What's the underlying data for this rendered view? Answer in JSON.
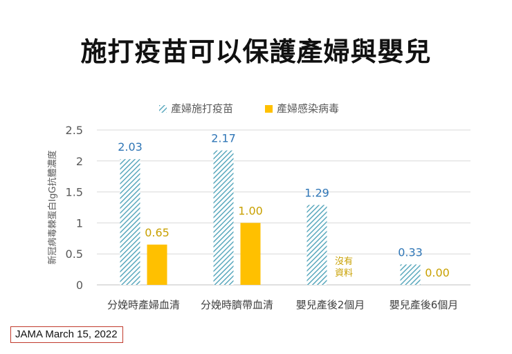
{
  "title": "施打疫苗可以保護產婦與嬰兒",
  "source": "JAMA March 15, 2022",
  "colors": {
    "vaccinated": "#5aa8bd",
    "infected": "#ffc000",
    "vaccinated_label": "#2e75b6",
    "infected_label": "#c8a000",
    "grid": "#d9d9d9",
    "axis_text": "#595959"
  },
  "chart_data": {
    "type": "bar",
    "title": "施打疫苗可以保護產婦與嬰兒",
    "ylabel": "新冠病毒棘蛋白IgG抗體濃度",
    "xlabel": "",
    "ylim": [
      0,
      2.5
    ],
    "yticks": [
      "0",
      "0.5",
      "1",
      "1.5",
      "2",
      "2.5"
    ],
    "categories": [
      "分娩時產婦血清",
      "分娩時臍帶血清",
      "嬰兒產後2個月",
      "嬰兒產後6個月"
    ],
    "series": [
      {
        "name": "產婦施打疫苗",
        "values": [
          2.03,
          2.17,
          1.29,
          0.33
        ],
        "labels": [
          "2.03",
          "2.17",
          "1.29",
          "0.33"
        ],
        "pattern": "diagonal-hatch"
      },
      {
        "name": "產婦感染病毒",
        "values": [
          0.65,
          1.0,
          null,
          0.0
        ],
        "labels": [
          "0.65",
          "1.00",
          "沒有資料",
          "0.00"
        ]
      }
    ],
    "legend": "top"
  }
}
